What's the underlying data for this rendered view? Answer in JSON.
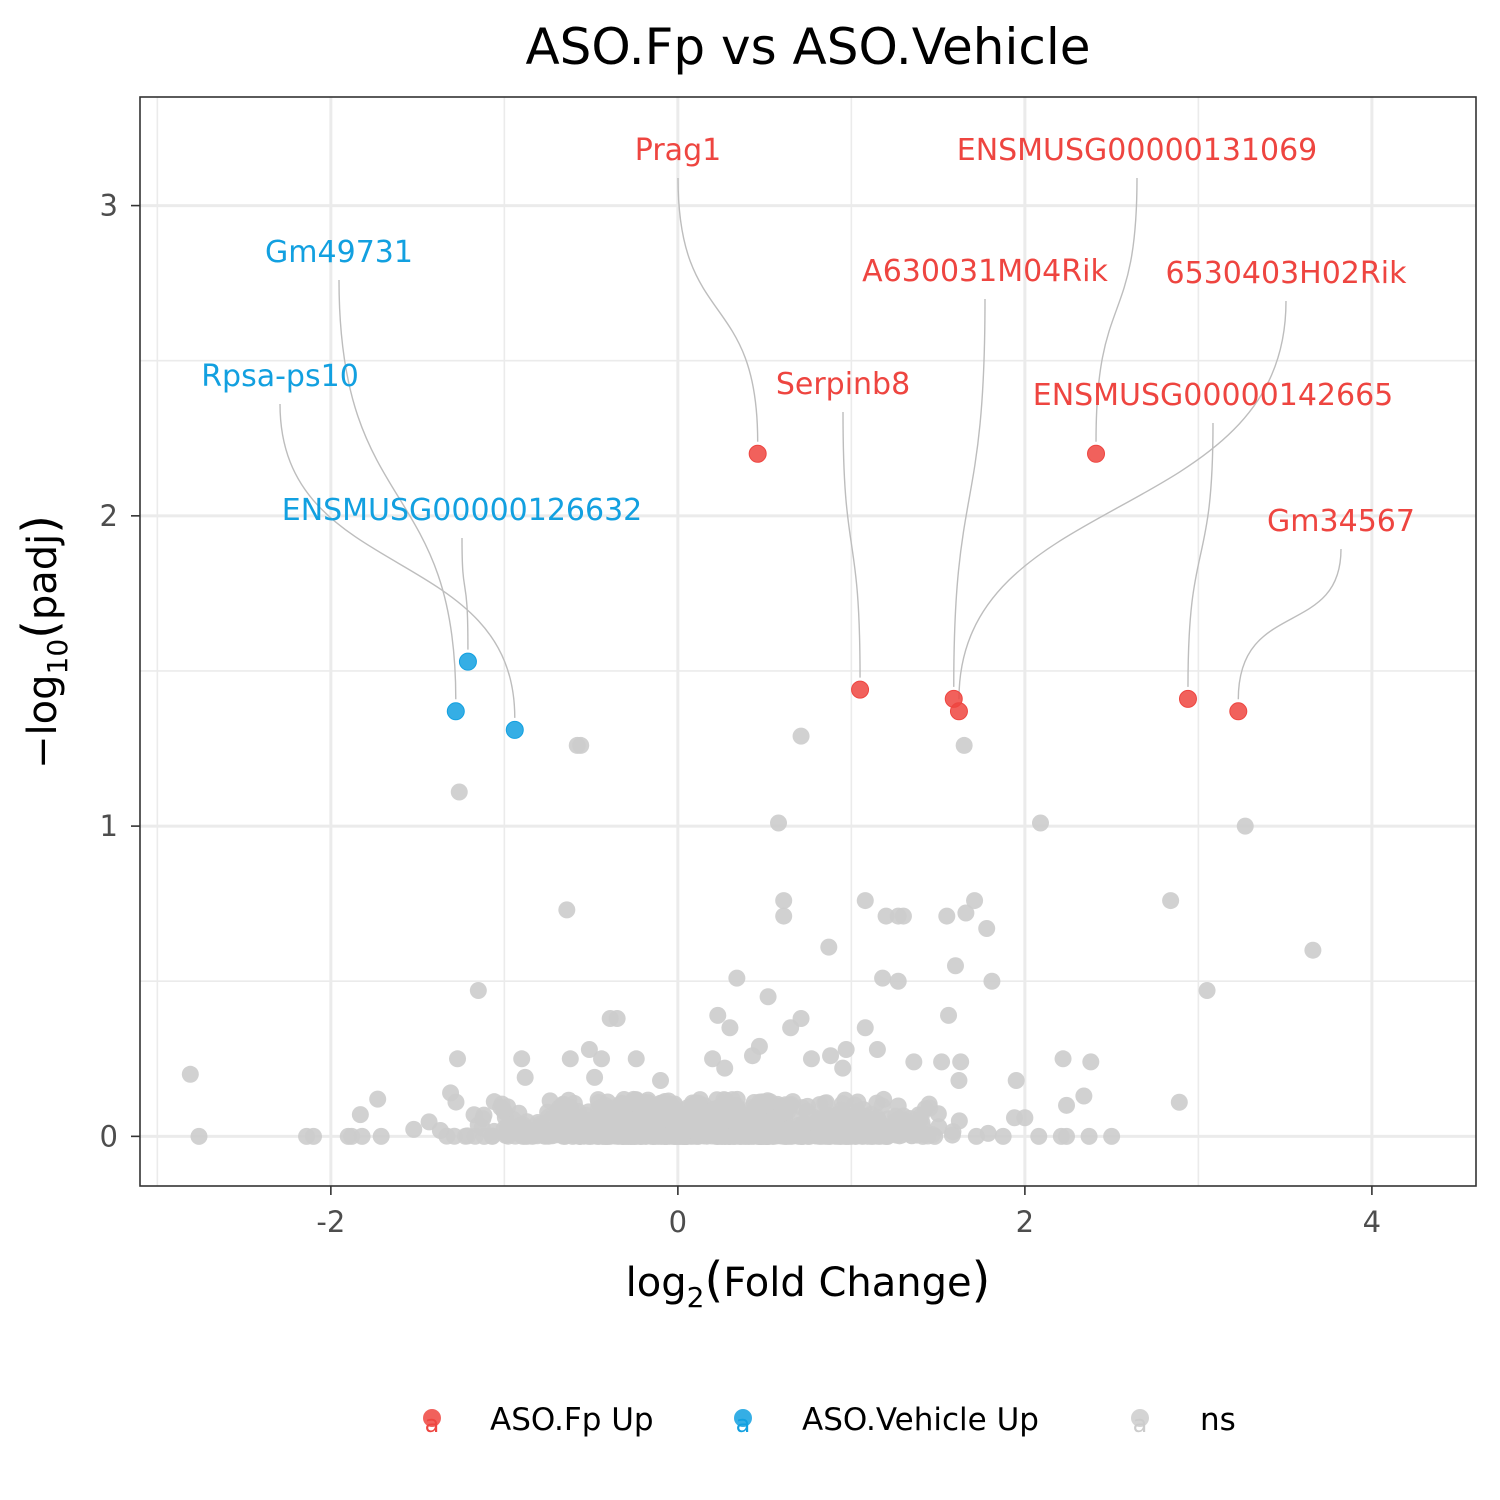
{
  "chart_data": {
    "type": "scatter",
    "title": "ASO.Fp vs ASO.Vehicle",
    "xlabel_base": "log",
    "xlabel_sub": "2",
    "xlabel_arg": "Fold Change",
    "ylabel_prefix": "−log",
    "ylabel_sub": "10",
    "ylabel_arg": "padj",
    "xlim": [
      -3.1,
      4.6
    ],
    "ylim": [
      -0.16,
      3.35
    ],
    "x_ticks": [
      -2,
      0,
      2,
      4
    ],
    "x_tick_labels": [
      "-2",
      "0",
      "2",
      "4"
    ],
    "y_ticks": [
      0,
      1,
      2,
      3
    ],
    "y_tick_labels": [
      "0",
      "1",
      "2",
      "3"
    ],
    "grid": true,
    "legend_position": "bottom",
    "legend": [
      {
        "name": "ASO.Fp Up",
        "color": "#EE4540"
      },
      {
        "name": "ASO.Vehicle Up",
        "color": "#12A0E0"
      },
      {
        "name": "ns",
        "color": "#CCCCCC"
      }
    ],
    "legend_key_glyph": "a",
    "series": [
      {
        "name": "ASO.Fp Up",
        "color": "#EE4540",
        "points": [
          {
            "x": 0.46,
            "y": 2.2,
            "label": "Prag1"
          },
          {
            "x": 2.41,
            "y": 2.2,
            "label": "ENSMUSG00000131069"
          },
          {
            "x": 1.59,
            "y": 1.41,
            "label": "A630031M04Rik"
          },
          {
            "x": 1.62,
            "y": 1.37,
            "label": "6530403H02Rik"
          },
          {
            "x": 1.05,
            "y": 1.44,
            "label": "Serpinb8"
          },
          {
            "x": 2.94,
            "y": 1.41,
            "label": "ENSMUSG00000142665"
          },
          {
            "x": 3.23,
            "y": 1.37,
            "label": "Gm34567"
          }
        ]
      },
      {
        "name": "ASO.Vehicle Up",
        "color": "#12A0E0",
        "points": [
          {
            "x": -1.21,
            "y": 1.53,
            "label": "ENSMUSG00000126632"
          },
          {
            "x": -1.28,
            "y": 1.37,
            "label": "Gm49731"
          },
          {
            "x": -0.94,
            "y": 1.31,
            "label": "Rpsa-ps10"
          }
        ]
      },
      {
        "name": "ns",
        "color": "#CCCCCC",
        "points": [
          {
            "x": -2.81,
            "y": 0.2
          },
          {
            "x": -2.76,
            "y": 0.0
          },
          {
            "x": -0.58,
            "y": 1.26
          },
          {
            "x": -0.56,
            "y": 1.26
          },
          {
            "x": -1.26,
            "y": 1.11
          },
          {
            "x": 0.71,
            "y": 1.29
          },
          {
            "x": 1.65,
            "y": 1.26
          },
          {
            "x": 0.58,
            "y": 1.01
          },
          {
            "x": 2.09,
            "y": 1.01
          },
          {
            "x": 3.27,
            "y": 1.0
          },
          {
            "x": -0.64,
            "y": 0.73
          },
          {
            "x": 0.61,
            "y": 0.76
          },
          {
            "x": 0.61,
            "y": 0.71
          },
          {
            "x": 1.08,
            "y": 0.76
          },
          {
            "x": 1.2,
            "y": 0.71
          },
          {
            "x": 1.27,
            "y": 0.71
          },
          {
            "x": 1.3,
            "y": 0.71
          },
          {
            "x": 1.55,
            "y": 0.71
          },
          {
            "x": 1.66,
            "y": 0.72
          },
          {
            "x": 1.71,
            "y": 0.76
          },
          {
            "x": 1.78,
            "y": 0.67
          },
          {
            "x": 2.84,
            "y": 0.76
          },
          {
            "x": 0.87,
            "y": 0.61
          },
          {
            "x": 1.6,
            "y": 0.55
          },
          {
            "x": 3.66,
            "y": 0.6
          },
          {
            "x": -1.15,
            "y": 0.47
          },
          {
            "x": 0.34,
            "y": 0.51
          },
          {
            "x": 0.52,
            "y": 0.45
          },
          {
            "x": 1.18,
            "y": 0.51
          },
          {
            "x": 1.27,
            "y": 0.5
          },
          {
            "x": 1.81,
            "y": 0.5
          },
          {
            "x": 3.05,
            "y": 0.47
          },
          {
            "x": -0.39,
            "y": 0.38
          },
          {
            "x": -0.35,
            "y": 0.38
          },
          {
            "x": 0.23,
            "y": 0.39
          },
          {
            "x": 0.3,
            "y": 0.35
          },
          {
            "x": 0.65,
            "y": 0.35
          },
          {
            "x": 0.71,
            "y": 0.38
          },
          {
            "x": 1.08,
            "y": 0.35
          },
          {
            "x": 1.56,
            "y": 0.39
          },
          {
            "x": -1.27,
            "y": 0.25
          },
          {
            "x": -0.9,
            "y": 0.25
          },
          {
            "x": -0.51,
            "y": 0.28
          },
          {
            "x": 0.2,
            "y": 0.25
          },
          {
            "x": 0.88,
            "y": 0.26
          },
          {
            "x": 1.15,
            "y": 0.28
          },
          {
            "x": 1.36,
            "y": 0.24
          },
          {
            "x": 1.52,
            "y": 0.24
          },
          {
            "x": 1.63,
            "y": 0.24
          },
          {
            "x": 2.22,
            "y": 0.25
          },
          {
            "x": 2.38,
            "y": 0.24
          },
          {
            "x": -1.31,
            "y": 0.14
          },
          {
            "x": -1.73,
            "y": 0.12
          },
          {
            "x": -0.88,
            "y": 0.19
          },
          {
            "x": 1.62,
            "y": 0.18
          },
          {
            "x": 1.95,
            "y": 0.18
          },
          {
            "x": 2.89,
            "y": 0.11
          },
          {
            "x": 2.24,
            "y": 0.1
          },
          {
            "x": 2.34,
            "y": 0.13
          },
          {
            "x": -1.83,
            "y": 0.07
          },
          {
            "x": 1.94,
            "y": 0.06
          },
          {
            "x": 2.0,
            "y": 0.06
          },
          {
            "x": -2.14,
            "y": 0.0
          },
          {
            "x": -2.1,
            "y": 0.0
          },
          {
            "x": -1.9,
            "y": 0.0
          },
          {
            "x": -1.88,
            "y": 0.0
          },
          {
            "x": -1.82,
            "y": 0.0
          },
          {
            "x": -1.71,
            "y": 0.0
          },
          {
            "x": 2.08,
            "y": 0.0
          },
          {
            "x": 2.21,
            "y": 0.0
          },
          {
            "x": 2.24,
            "y": 0.0
          },
          {
            "x": 2.37,
            "y": 0.0
          },
          {
            "x": 2.5,
            "y": 0.0
          },
          {
            "x": -0.62,
            "y": 0.25
          },
          {
            "x": -0.44,
            "y": 0.25
          },
          {
            "x": -0.24,
            "y": 0.25
          },
          {
            "x": -0.1,
            "y": 0.18
          },
          {
            "x": -0.48,
            "y": 0.19
          },
          {
            "x": 0.08,
            "y": 0.05
          },
          {
            "x": 0.27,
            "y": 0.22
          },
          {
            "x": 0.43,
            "y": 0.26
          },
          {
            "x": 0.47,
            "y": 0.29
          },
          {
            "x": 0.77,
            "y": 0.25
          },
          {
            "x": 0.95,
            "y": 0.22
          },
          {
            "x": 0.97,
            "y": 0.28
          }
        ]
      }
    ]
  }
}
